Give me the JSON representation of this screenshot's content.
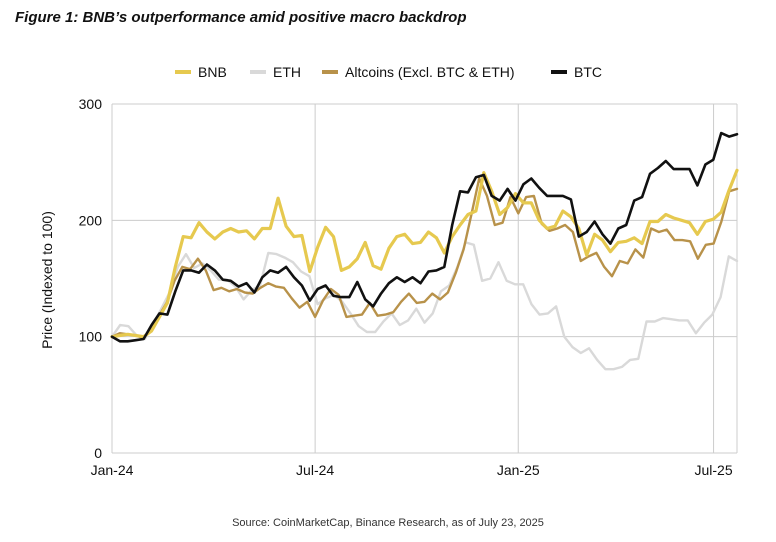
{
  "figure_title": "Figure 1: BNB’s outperformance amid positive macro backdrop",
  "source": "Source: CoinMarketCap, Binance Research, as of July 23, 2025",
  "colors": {
    "BNB": "#E6C94F",
    "ETH": "#D9D9D9",
    "Altcoins (Excl. BTC & ETH)": "#B8924A",
    "BTC": "#111111",
    "grid": "#CCCCCC"
  },
  "chart_data": {
    "type": "line",
    "title": "",
    "xlabel": "",
    "ylabel": "Price (Indexed to 100)",
    "ylim": [
      0,
      300
    ],
    "yticks": [
      0,
      100,
      200,
      300
    ],
    "xticks": [
      "Jan-24",
      "Jul-24",
      "Jan-25",
      "Jul-25"
    ],
    "grid": true,
    "legend_position": "top-center",
    "x_unit": "weeks since Jan-24",
    "series": [
      {
        "name": "BNB",
        "values": [
          100,
          101,
          102,
          101,
          100,
          105,
          117,
          129,
          160,
          186,
          185,
          198,
          190,
          184,
          190,
          193,
          190,
          191,
          184,
          193,
          193,
          219,
          195,
          186,
          187,
          156,
          177,
          194,
          186,
          157,
          160,
          167,
          181,
          161,
          158,
          176,
          186,
          188,
          180,
          181,
          190,
          185,
          172,
          186,
          196,
          205,
          208,
          241,
          225,
          205,
          211,
          223,
          215,
          215,
          200,
          193,
          195,
          208,
          203,
          193,
          170,
          188,
          183,
          173,
          181,
          182,
          185,
          180,
          199,
          199,
          205,
          202,
          200,
          198,
          188,
          199,
          201,
          207,
          226,
          243
        ]
      },
      {
        "name": "ETH",
        "values": [
          100,
          110,
          109,
          101,
          98,
          110,
          124,
          138,
          160,
          171,
          159,
          163,
          157,
          149,
          149,
          143,
          132,
          140,
          144,
          172,
          171,
          168,
          164,
          156,
          152,
          128,
          133,
          136,
          130,
          120,
          109,
          104,
          104,
          113,
          120,
          110,
          114,
          124,
          112,
          120,
          139,
          144,
          160,
          181,
          179,
          148,
          150,
          164,
          148,
          145,
          145,
          128,
          119,
          120,
          126,
          100,
          91,
          86,
          90,
          80,
          72,
          72,
          74,
          80,
          81,
          113,
          113,
          116,
          115,
          114,
          114,
          103,
          112,
          119,
          134,
          169,
          165
        ]
      },
      {
        "name": "Altcoins (Excl. BTC & ETH)",
        "values": [
          100,
          103,
          102,
          101,
          99,
          107,
          118,
          129,
          148,
          160,
          158,
          167,
          157,
          140,
          142,
          139,
          141,
          138,
          137,
          142,
          146,
          143,
          142,
          133,
          125,
          130,
          117,
          131,
          141,
          136,
          117,
          118,
          119,
          129,
          118,
          119,
          121,
          130,
          137,
          129,
          130,
          137,
          132,
          138,
          155,
          175,
          205,
          236,
          221,
          196,
          198,
          220,
          206,
          220,
          221,
          197,
          191,
          193,
          196,
          190,
          165,
          169,
          172,
          160,
          152,
          165,
          163,
          175,
          168,
          193,
          190,
          192,
          183,
          183,
          182,
          167,
          179,
          180,
          199,
          225,
          227
        ]
      },
      {
        "name": "BTC",
        "values": [
          100,
          96,
          96,
          97,
          98,
          110,
          120,
          119,
          139,
          157,
          157,
          155,
          162,
          157,
          149,
          148,
          143,
          146,
          138,
          151,
          157,
          155,
          160,
          151,
          144,
          131,
          141,
          144,
          135,
          134,
          134,
          147,
          132,
          126,
          137,
          146,
          151,
          147,
          151,
          146,
          156,
          157,
          160,
          196,
          225,
          224,
          237,
          239,
          221,
          217,
          227,
          217,
          231,
          236,
          228,
          221,
          221,
          221,
          218,
          186,
          190,
          199,
          188,
          180,
          193,
          196,
          217,
          220,
          240,
          245,
          251,
          244,
          244,
          244,
          230,
          248,
          252,
          275,
          272,
          274
        ]
      }
    ]
  }
}
